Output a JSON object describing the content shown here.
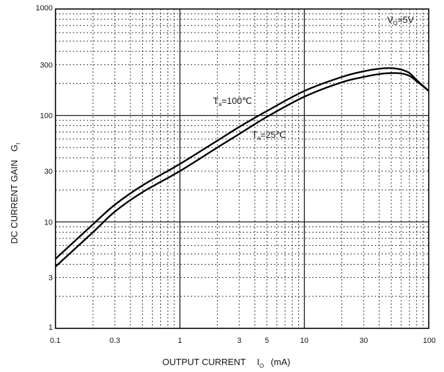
{
  "chart_data": {
    "type": "line",
    "title": "",
    "xlabel": {
      "main": "OUTPUT CURRENT",
      "symbol": "I",
      "subscript": "O",
      "unit": "(mA)"
    },
    "ylabel": {
      "main": "DC CURRENT GAIN",
      "symbol": "G",
      "subscript": "I"
    },
    "xscale": "log",
    "yscale": "log",
    "xlim": [
      0.1,
      100
    ],
    "ylim": [
      1,
      1000
    ],
    "grid": true,
    "x_ticks": [
      "0.1",
      "0.3",
      "1",
      "3",
      "5",
      "10",
      "30",
      "100"
    ],
    "y_ticks": [
      "1",
      "3",
      "10",
      "30",
      "100",
      "300",
      "1000"
    ],
    "condition": {
      "symbol": "V",
      "subscript": "O",
      "value": "=5V"
    },
    "series": [
      {
        "name": {
          "symbol": "T",
          "subscript": "a",
          "value": "=100℃"
        },
        "x": [
          0.1,
          0.2,
          0.3,
          0.5,
          1,
          2,
          3,
          5,
          10,
          20,
          30,
          40,
          50,
          60,
          70,
          80,
          100
        ],
        "y": [
          4.5,
          9.5,
          14.5,
          22,
          35,
          58,
          78,
          110,
          170,
          230,
          260,
          275,
          278,
          270,
          250,
          215,
          170
        ]
      },
      {
        "name": {
          "symbol": "T",
          "subscript": "a",
          "value": "=25℃"
        },
        "x": [
          0.1,
          0.2,
          0.3,
          0.5,
          1,
          2,
          3,
          5,
          10,
          20,
          30,
          40,
          50,
          60,
          70,
          80,
          100
        ],
        "y": [
          3.8,
          8,
          12.5,
          19,
          30,
          50,
          67,
          97,
          150,
          205,
          230,
          245,
          250,
          248,
          235,
          210,
          170
        ]
      }
    ]
  }
}
